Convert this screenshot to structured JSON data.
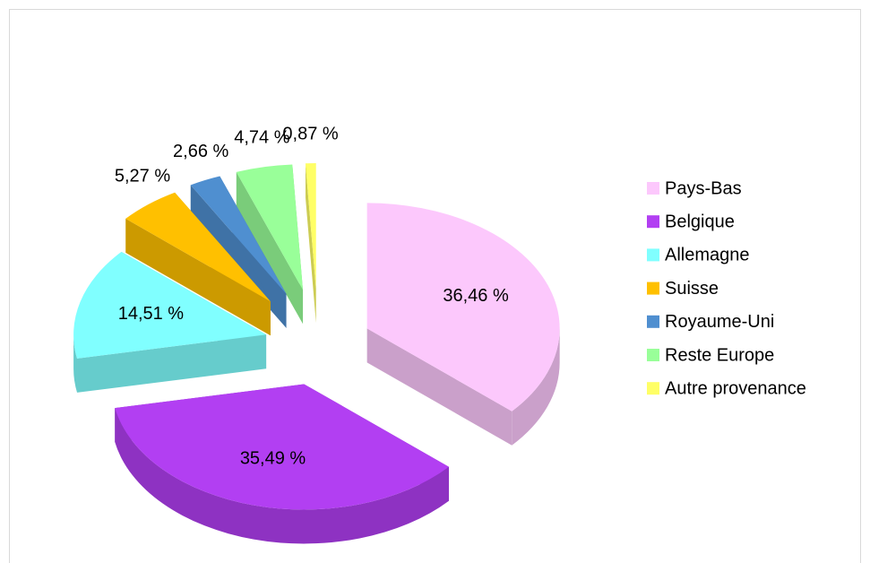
{
  "chart_data": {
    "type": "pie",
    "categories": [
      "Pays-Bas",
      "Belgique",
      "Allemagne",
      "Suisse",
      "Royaume-Uni",
      "Reste Europe",
      "Autre provenance"
    ],
    "values": [
      36.46,
      35.49,
      14.51,
      5.27,
      2.66,
      4.74,
      0.87
    ],
    "value_labels": [
      "36,46 %",
      "35,49 %",
      "14,51 %",
      "5,27 %",
      "2,66 %",
      "4,74 %",
      "0,87 %"
    ],
    "colors": [
      "#fcc8fc",
      "#b23ff2",
      "#80ffff",
      "#ffc000",
      "#4f8fd0",
      "#99ff99",
      "#ffff66"
    ],
    "legend": "right"
  }
}
